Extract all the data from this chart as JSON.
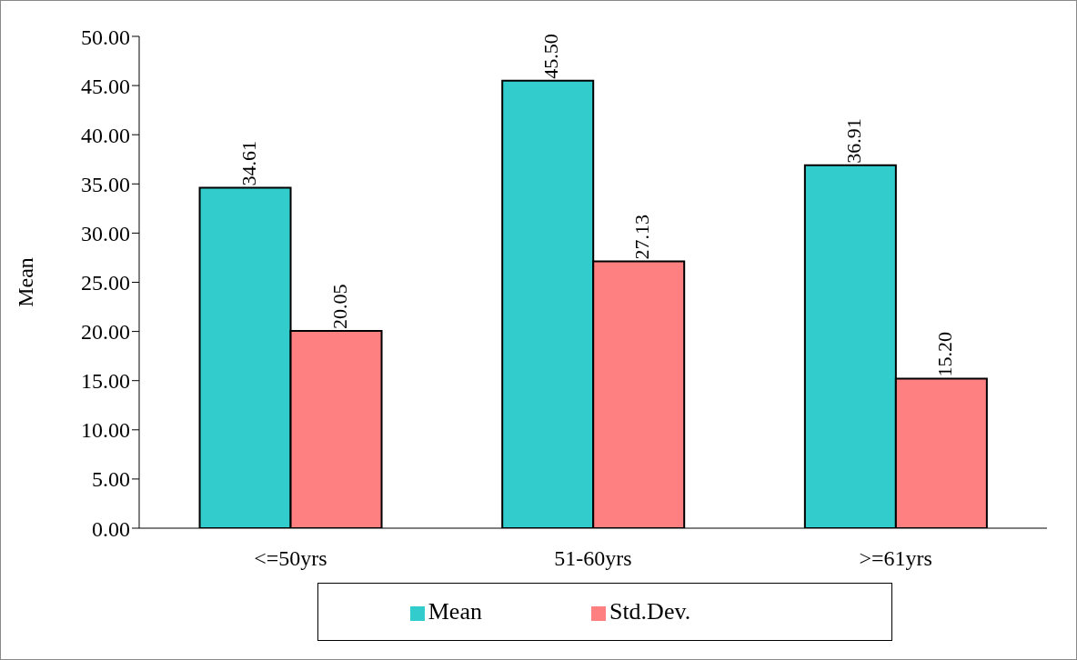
{
  "chart_data": {
    "type": "bar",
    "ylabel": "Mean",
    "categories": [
      "<=50yrs",
      "51-60yrs",
      ">=61yrs"
    ],
    "series": [
      {
        "name": "Mean",
        "color": "#33cccc",
        "values": [
          34.61,
          45.5,
          36.91
        ],
        "value_labels": [
          "34.61",
          "45.50",
          "36.91"
        ]
      },
      {
        "name": "Std.Dev.",
        "color": "#ff8080",
        "values": [
          20.05,
          27.13,
          15.2
        ],
        "value_labels": [
          "20.05",
          "27.13",
          "15.20"
        ]
      }
    ],
    "ylim": [
      0,
      50
    ],
    "yticks": [
      {
        "value": 0,
        "label": "0.00"
      },
      {
        "value": 5,
        "label": "5.00"
      },
      {
        "value": 10,
        "label": "10.00"
      },
      {
        "value": 15,
        "label": "15.00"
      },
      {
        "value": 20,
        "label": "20.00"
      },
      {
        "value": 25,
        "label": "25.00"
      },
      {
        "value": 30,
        "label": "30.00"
      },
      {
        "value": 35,
        "label": "35.00"
      },
      {
        "value": 40,
        "label": "40.00"
      },
      {
        "value": 45,
        "label": "45.00"
      },
      {
        "value": 50,
        "label": "50.00"
      }
    ],
    "grid": false,
    "legend": "bottom"
  }
}
